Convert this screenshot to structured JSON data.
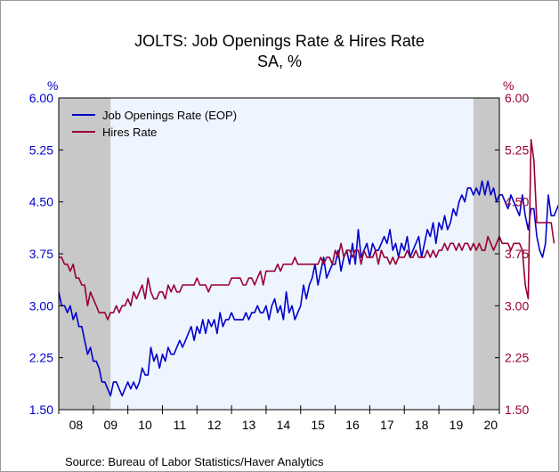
{
  "chart_data": {
    "type": "line",
    "title": "JOLTS: Job Openings Rate & Hires Rate",
    "subtitle": "SA, %",
    "source": "Source:  Bureau of Labor Statistics/Haver Analytics",
    "y_left": {
      "unit": "%",
      "ylim": [
        1.5,
        6.0
      ],
      "ticks": [
        "6.00",
        "5.25",
        "4.50",
        "3.75",
        "3.00",
        "2.25",
        "1.50"
      ],
      "color": "#0000cc"
    },
    "y_right": {
      "unit": "%",
      "ylim": [
        1.5,
        6.0
      ],
      "ticks": [
        "6.00",
        "5.25",
        "4.50",
        "3.75",
        "3.00",
        "2.25",
        "1.50"
      ],
      "color": "#990033"
    },
    "x": {
      "range": [
        2008.0,
        2020.75
      ],
      "tick_labels": [
        "08",
        "09",
        "10",
        "11",
        "12",
        "13",
        "14",
        "15",
        "16",
        "17",
        "18",
        "19",
        "20"
      ],
      "tick_positions": [
        2008,
        2009,
        2010,
        2011,
        2012,
        2013,
        2014,
        2015,
        2016,
        2017,
        2018,
        2019,
        2020
      ]
    },
    "recessions": [
      {
        "start": 2008.0,
        "end": 2009.5
      },
      {
        "start": 2020.0,
        "end": 2020.75
      }
    ],
    "legend": {
      "position": "top-left"
    },
    "start": {
      "year": 2008,
      "month": 1
    },
    "series": [
      {
        "name": "Job Openings Rate (EOP)",
        "axis": "left",
        "color": "#0000cc",
        "values": [
          3.2,
          3.0,
          3.0,
          2.9,
          3.0,
          2.8,
          2.9,
          2.7,
          2.7,
          2.5,
          2.3,
          2.4,
          2.2,
          2.2,
          2.1,
          1.9,
          1.9,
          1.8,
          1.7,
          1.9,
          1.9,
          1.8,
          1.7,
          1.8,
          1.9,
          1.8,
          1.9,
          1.8,
          1.9,
          2.1,
          2.0,
          2.0,
          2.4,
          2.2,
          2.3,
          2.1,
          2.3,
          2.2,
          2.4,
          2.3,
          2.3,
          2.4,
          2.5,
          2.4,
          2.5,
          2.6,
          2.7,
          2.5,
          2.7,
          2.6,
          2.8,
          2.6,
          2.8,
          2.7,
          2.8,
          2.6,
          2.9,
          2.7,
          2.8,
          2.8,
          2.9,
          2.8,
          2.8,
          2.8,
          2.8,
          2.9,
          2.8,
          2.9,
          2.9,
          3.0,
          2.9,
          2.9,
          3.0,
          2.8,
          3.0,
          3.1,
          2.9,
          3.0,
          2.8,
          3.2,
          2.9,
          3.0,
          2.8,
          2.9,
          3.0,
          3.3,
          3.1,
          3.3,
          3.4,
          3.6,
          3.3,
          3.5,
          3.7,
          3.4,
          3.5,
          3.6,
          3.6,
          3.8,
          3.5,
          3.7,
          3.8,
          3.6,
          3.9,
          3.6,
          4.1,
          3.7,
          3.8,
          3.9,
          3.7,
          3.9,
          3.8,
          3.8,
          3.9,
          4.0,
          3.9,
          4.1,
          3.8,
          3.9,
          3.7,
          3.9,
          3.8,
          4.0,
          3.7,
          3.8,
          3.9,
          4.0,
          3.7,
          3.9,
          4.1,
          4.0,
          4.2,
          3.9,
          4.2,
          4.1,
          4.3,
          4.1,
          4.2,
          4.4,
          4.3,
          4.5,
          4.6,
          4.5,
          4.7,
          4.7,
          4.6,
          4.7,
          4.6,
          4.8,
          4.6,
          4.8,
          4.6,
          4.7,
          4.5,
          4.6,
          4.6,
          4.5,
          4.4,
          4.6,
          4.5,
          4.4,
          4.3,
          4.6,
          4.3,
          4.1,
          4.4,
          4.4,
          4.0,
          3.8,
          3.7,
          3.9,
          4.6,
          4.3,
          4.3,
          4.4,
          4.5,
          4.4,
          4.5
        ]
      },
      {
        "name": "Hires Rate",
        "axis": "right",
        "color": "#990033",
        "values": [
          3.7,
          3.7,
          3.6,
          3.6,
          3.5,
          3.6,
          3.4,
          3.4,
          3.3,
          3.3,
          3.0,
          3.2,
          3.1,
          3.0,
          2.9,
          2.9,
          2.9,
          2.8,
          2.9,
          2.9,
          3.0,
          2.9,
          3.0,
          3.0,
          3.1,
          3.0,
          3.2,
          3.1,
          3.2,
          3.3,
          3.1,
          3.4,
          3.2,
          3.1,
          3.1,
          3.2,
          3.2,
          3.1,
          3.3,
          3.2,
          3.3,
          3.2,
          3.2,
          3.3,
          3.3,
          3.3,
          3.3,
          3.3,
          3.4,
          3.3,
          3.3,
          3.3,
          3.2,
          3.3,
          3.3,
          3.3,
          3.3,
          3.3,
          3.3,
          3.3,
          3.4,
          3.4,
          3.4,
          3.4,
          3.3,
          3.3,
          3.4,
          3.4,
          3.3,
          3.4,
          3.5,
          3.3,
          3.5,
          3.5,
          3.5,
          3.5,
          3.6,
          3.5,
          3.6,
          3.6,
          3.6,
          3.6,
          3.7,
          3.6,
          3.6,
          3.6,
          3.6,
          3.6,
          3.6,
          3.6,
          3.6,
          3.7,
          3.6,
          3.7,
          3.7,
          3.6,
          3.8,
          3.7,
          3.9,
          3.7,
          3.8,
          3.8,
          3.7,
          3.8,
          3.8,
          3.6,
          3.8,
          3.7,
          3.7,
          3.7,
          3.8,
          3.6,
          3.8,
          3.7,
          3.7,
          3.6,
          3.7,
          3.6,
          3.7,
          3.7,
          3.7,
          3.8,
          3.7,
          3.7,
          3.8,
          3.7,
          3.7,
          3.7,
          3.8,
          3.7,
          3.8,
          3.7,
          3.8,
          3.8,
          3.9,
          3.8,
          3.9,
          3.9,
          3.8,
          3.9,
          3.8,
          3.9,
          3.9,
          3.8,
          3.9,
          3.8,
          3.9,
          3.8,
          3.8,
          4.0,
          3.9,
          3.8,
          3.9,
          4.0,
          3.9,
          3.9,
          3.9,
          3.8,
          3.9,
          3.9,
          3.9,
          3.8,
          3.3,
          3.1,
          5.4,
          5.1,
          4.2,
          4.2,
          4.2,
          4.2,
          4.2,
          4.2,
          3.9
        ]
      }
    ]
  }
}
